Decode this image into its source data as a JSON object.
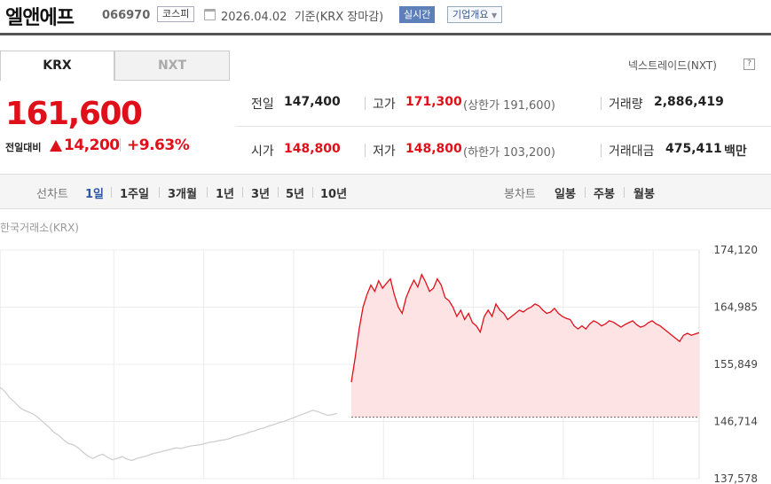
{
  "header": {
    "stock_name": "엘앤에프",
    "stock_code": "066970",
    "market_badge": "코스피",
    "date_text": "2026.04.02  기준(KRX 장마감)",
    "realtime_badge": "실시간",
    "company_badge": "기업개요",
    "company_badge_icon": "caret-down-icon"
  },
  "tabs": {
    "krx": "KRX",
    "nxt": "NXT"
  },
  "nxt_link": "넥스트레이드(NXT)",
  "help_label": "?",
  "price": {
    "current": "161,600",
    "change_label": "전일대비",
    "change_amount": "14,200",
    "change_percent": "+9.63%",
    "direction": "up"
  },
  "quote": {
    "prev_label": "전일",
    "prev_value": "147,400",
    "high_label": "고가",
    "high_value": "171,300",
    "upper_limit": "(상한가 191,600)",
    "volume_label": "거래량",
    "volume_value": "2,886,419",
    "open_label": "시가",
    "open_value": "148,800",
    "low_label": "저가",
    "low_value": "148,800",
    "lower_limit": "(하한가 103,200)",
    "amount_label": "거래대금",
    "amount_value": "475,411",
    "amount_unit": "백만"
  },
  "period_bar": {
    "line_label": "선차트",
    "line_items": [
      "1일",
      "1주일",
      "3개월",
      "1년",
      "3년",
      "5년",
      "10년"
    ],
    "selected": "1일",
    "candle_label": "봉차트",
    "candle_items": [
      "일봉",
      "주봉",
      "월봉"
    ]
  },
  "colors": {
    "up": "#e0101a",
    "selected": "#2c56a8"
  },
  "chart_data": {
    "type": "area",
    "source_label": "한국거래소(KRX)",
    "y_ticks": [
      "174,120",
      "164,985",
      "155,849",
      "146,714",
      "137,578"
    ],
    "ylim": [
      137578,
      174120
    ],
    "reference_line": 147400,
    "series": [
      {
        "role": "prev_day",
        "values": [
          152200,
          151500,
          150500,
          149800,
          149000,
          148500,
          148200,
          147800,
          147200,
          146500,
          145800,
          145000,
          144500,
          143800,
          143200,
          143000,
          142500,
          141800,
          141200,
          140800,
          141200,
          141500,
          141000,
          140600,
          140800,
          141100,
          140700,
          140500,
          140800,
          141000,
          141200,
          141500,
          141700,
          141900,
          142100,
          142300,
          142500,
          142400,
          142600,
          142800,
          142900,
          143000,
          143200,
          143400,
          143500,
          143700,
          143800,
          144000,
          144300,
          144500,
          144700,
          145000,
          145200,
          145500,
          145700,
          146000,
          146200,
          146500,
          146700,
          147000,
          147300,
          147600,
          147900,
          148200,
          148500,
          148300,
          148000,
          147700,
          147800,
          148000
        ]
      },
      {
        "role": "today",
        "values": [
          153000,
          157000,
          161500,
          165000,
          167000,
          168500,
          167500,
          169200,
          168000,
          168800,
          169500,
          167000,
          165000,
          164000,
          166500,
          168000,
          169300,
          168200,
          170200,
          169000,
          167500,
          168000,
          169500,
          168500,
          166500,
          166000,
          165000,
          163500,
          164500,
          163000,
          164000,
          162500,
          162000,
          161000,
          163500,
          164500,
          163500,
          165500,
          164500,
          164000,
          163000,
          163500,
          164000,
          164500,
          164200,
          164700,
          165000,
          165500,
          165200,
          164500,
          164000,
          164200,
          164800,
          164000,
          163500,
          163200,
          163000,
          162000,
          161500,
          162000,
          161500,
          162300,
          162800,
          162500,
          162000,
          162300,
          162800,
          162600,
          162200,
          161800,
          162200,
          162500,
          162800,
          162200,
          161800,
          162000,
          162500,
          162800,
          162300,
          162000,
          161500,
          161000,
          160500,
          160000,
          159500,
          160500,
          160800,
          160500,
          160700,
          160900
        ]
      }
    ]
  }
}
